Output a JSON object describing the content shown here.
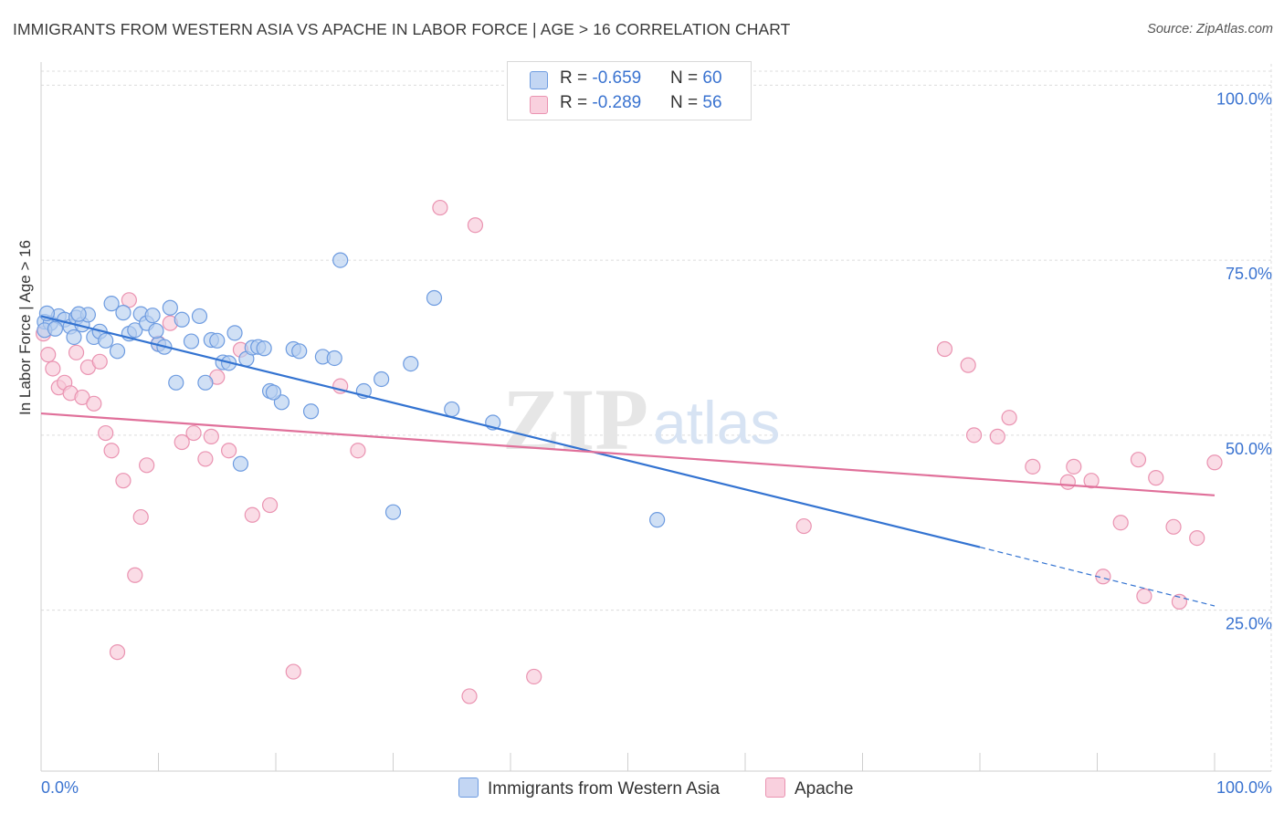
{
  "title": "IMMIGRANTS FROM WESTERN ASIA VS APACHE IN LABOR FORCE | AGE > 16 CORRELATION CHART",
  "source": "Source: ZipAtlas.com",
  "watermark": {
    "zip": "ZIP",
    "atlas": "atlas"
  },
  "legend": {
    "rows": [
      {
        "r_label": "R = ",
        "r_value": "-0.659",
        "n_label": "N = ",
        "n_value": "60"
      },
      {
        "r_label": "R = ",
        "r_value": "-0.289",
        "n_label": "N = ",
        "n_value": "56"
      }
    ]
  },
  "colors": {
    "blue_fill": "#b7cff0",
    "blue_stroke": "#6d9be0",
    "blue_line": "#3373d1",
    "pink_fill": "#f8c9d8",
    "pink_stroke": "#ea93b1",
    "pink_line": "#e0709a",
    "grid": "#dcdcdc",
    "tick_label": "#3a73d0"
  },
  "chart_data": {
    "type": "scatter",
    "title": "IMMIGRANTS FROM WESTERN ASIA VS APACHE IN LABOR FORCE | AGE > 16 CORRELATION CHART",
    "xlabel": "",
    "ylabel": "In Labor Force | Age > 16",
    "xlim": [
      0,
      100
    ],
    "ylim": [
      2,
      102
    ],
    "x_tick_labels": [
      "0.0%",
      "100.0%"
    ],
    "y_ticks": [
      25,
      50,
      75,
      100
    ],
    "y_tick_labels": [
      "25.0%",
      "50.0%",
      "75.0%",
      "100.0%"
    ],
    "grid": true,
    "series": [
      {
        "name": "Immigrants from Western Asia",
        "color": "#6d9be0",
        "r": -0.659,
        "n": 60,
        "trend": {
          "x0": 0,
          "y0": 67.0,
          "x1": 80,
          "y1": 34.0,
          "dash_to_x": 100,
          "dash_to_y": 25.6
        },
        "points": [
          [
            0.3,
            66.2
          ],
          [
            0.8,
            66.0
          ],
          [
            1.5,
            67.0
          ],
          [
            2.0,
            66.5
          ],
          [
            2.5,
            65.5
          ],
          [
            3.0,
            66.8
          ],
          [
            3.5,
            65.8
          ],
          [
            4.0,
            67.2
          ],
          [
            4.5,
            64.0
          ],
          [
            5.0,
            64.8
          ],
          [
            5.5,
            63.5
          ],
          [
            6.0,
            68.8
          ],
          [
            6.5,
            62.0
          ],
          [
            7.0,
            67.5
          ],
          [
            7.5,
            64.5
          ],
          [
            8.0,
            65.0
          ],
          [
            8.5,
            67.3
          ],
          [
            9.0,
            66.0
          ],
          [
            9.5,
            67.1
          ],
          [
            10.0,
            63.0
          ],
          [
            10.5,
            62.6
          ],
          [
            11.0,
            68.2
          ],
          [
            11.5,
            57.5
          ],
          [
            12.0,
            66.5
          ],
          [
            12.8,
            63.4
          ],
          [
            13.5,
            67.0
          ],
          [
            14.0,
            57.5
          ],
          [
            14.5,
            63.6
          ],
          [
            15.0,
            63.5
          ],
          [
            15.5,
            60.4
          ],
          [
            16.0,
            60.3
          ],
          [
            16.5,
            64.6
          ],
          [
            17.0,
            45.9
          ],
          [
            17.5,
            60.9
          ],
          [
            18.0,
            62.5
          ],
          [
            18.5,
            62.6
          ],
          [
            19.0,
            62.4
          ],
          [
            19.5,
            56.3
          ],
          [
            20.5,
            54.7
          ],
          [
            21.5,
            62.3
          ],
          [
            22.0,
            62.0
          ],
          [
            23.0,
            53.4
          ],
          [
            24.0,
            61.2
          ],
          [
            25.0,
            61.0
          ],
          [
            25.5,
            75.0
          ],
          [
            27.5,
            56.3
          ],
          [
            29.0,
            58.0
          ],
          [
            30.0,
            39.0
          ],
          [
            31.5,
            60.2
          ],
          [
            33.5,
            69.6
          ],
          [
            35.0,
            53.7
          ],
          [
            38.5,
            51.8
          ],
          [
            52.5,
            37.9
          ],
          [
            0.3,
            65.0
          ],
          [
            0.5,
            67.4
          ],
          [
            1.2,
            65.2
          ],
          [
            2.8,
            64.0
          ],
          [
            3.2,
            67.3
          ],
          [
            9.8,
            64.9
          ],
          [
            19.8,
            56.1
          ]
        ]
      },
      {
        "name": "Apache",
        "color": "#ea93b1",
        "r": -0.289,
        "n": 56,
        "trend": {
          "x0": 0,
          "y0": 53.1,
          "x1": 100,
          "y1": 41.4
        },
        "points": [
          [
            0.2,
            64.5
          ],
          [
            0.6,
            61.5
          ],
          [
            1.0,
            59.5
          ],
          [
            1.5,
            56.8
          ],
          [
            2.0,
            57.5
          ],
          [
            2.5,
            56.0
          ],
          [
            3.0,
            61.8
          ],
          [
            3.5,
            55.4
          ],
          [
            4.0,
            59.7
          ],
          [
            4.5,
            54.5
          ],
          [
            5.0,
            60.5
          ],
          [
            5.5,
            50.3
          ],
          [
            6.0,
            47.8
          ],
          [
            6.5,
            19.0
          ],
          [
            7.0,
            43.5
          ],
          [
            7.5,
            69.3
          ],
          [
            8.0,
            30.0
          ],
          [
            8.5,
            38.3
          ],
          [
            9.0,
            45.7
          ],
          [
            10.0,
            63.1
          ],
          [
            11.0,
            66.0
          ],
          [
            12.0,
            49.0
          ],
          [
            13.0,
            50.3
          ],
          [
            14.0,
            46.6
          ],
          [
            14.5,
            49.8
          ],
          [
            15.0,
            58.3
          ],
          [
            16.0,
            47.8
          ],
          [
            17.0,
            62.2
          ],
          [
            18.0,
            38.6
          ],
          [
            19.5,
            40.0
          ],
          [
            21.5,
            16.2
          ],
          [
            25.5,
            57.0
          ],
          [
            27.0,
            47.8
          ],
          [
            34.0,
            82.5
          ],
          [
            36.5,
            12.7
          ],
          [
            37.0,
            80.0
          ],
          [
            42.0,
            15.5
          ],
          [
            65.0,
            37.0
          ],
          [
            77.0,
            62.3
          ],
          [
            79.0,
            60.0
          ],
          [
            79.5,
            50.0
          ],
          [
            81.5,
            49.8
          ],
          [
            82.5,
            52.5
          ],
          [
            84.5,
            45.5
          ],
          [
            87.5,
            43.3
          ],
          [
            88.0,
            45.5
          ],
          [
            89.5,
            43.5
          ],
          [
            90.5,
            29.8
          ],
          [
            92.0,
            37.5
          ],
          [
            93.5,
            46.5
          ],
          [
            94.0,
            27.0
          ],
          [
            95.0,
            43.9
          ],
          [
            96.5,
            36.9
          ],
          [
            97.0,
            26.2
          ],
          [
            98.5,
            35.3
          ],
          [
            100.0,
            46.1
          ]
        ]
      }
    ]
  },
  "bottom_legend": {
    "items": [
      "Immigrants from Western Asia",
      "Apache"
    ]
  }
}
